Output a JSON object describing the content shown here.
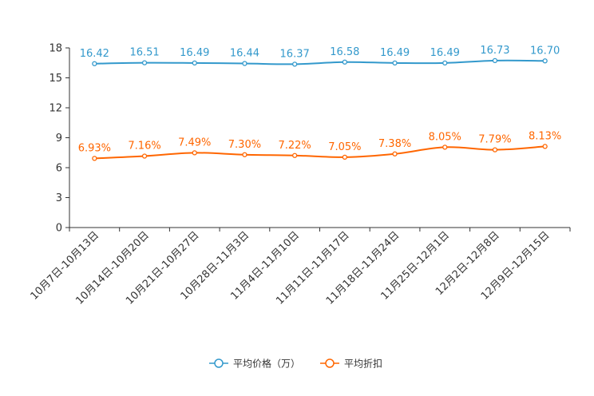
{
  "chart_data": {
    "type": "line",
    "categories": [
      "10月7日-10月13日",
      "10月14日-10月20日",
      "10月21日-10月27日",
      "10月28日-11月3日",
      "11月4日-11月10日",
      "11月11日-11月17日",
      "11月18日-11月24日",
      "11月25日-12月1日",
      "12月2日-12月8日",
      "12月9日-12月15日"
    ],
    "series": [
      {
        "name": "平均价格（万）",
        "color": "#3399cc",
        "values": [
          16.42,
          16.51,
          16.49,
          16.44,
          16.37,
          16.58,
          16.49,
          16.49,
          16.73,
          16.7
        ],
        "labels": [
          "16.42",
          "16.51",
          "16.49",
          "16.44",
          "16.37",
          "16.58",
          "16.49",
          "16.49",
          "16.73",
          "16.70"
        ]
      },
      {
        "name": "平均折扣",
        "color": "#ff6600",
        "values": [
          6.93,
          7.16,
          7.49,
          7.3,
          7.22,
          7.05,
          7.38,
          8.05,
          7.79,
          8.13
        ],
        "labels": [
          "6.93%",
          "7.16%",
          "7.49%",
          "7.30%",
          "7.22%",
          "7.05%",
          "7.38%",
          "8.05%",
          "7.79%",
          "8.13%"
        ]
      }
    ],
    "y_ticks": [
      "0",
      "3",
      "6",
      "9",
      "12",
      "15",
      "18"
    ],
    "ylim": [
      0,
      18
    ],
    "title": "",
    "xlabel": "",
    "ylabel": "",
    "legend_position": "bottom-center"
  }
}
